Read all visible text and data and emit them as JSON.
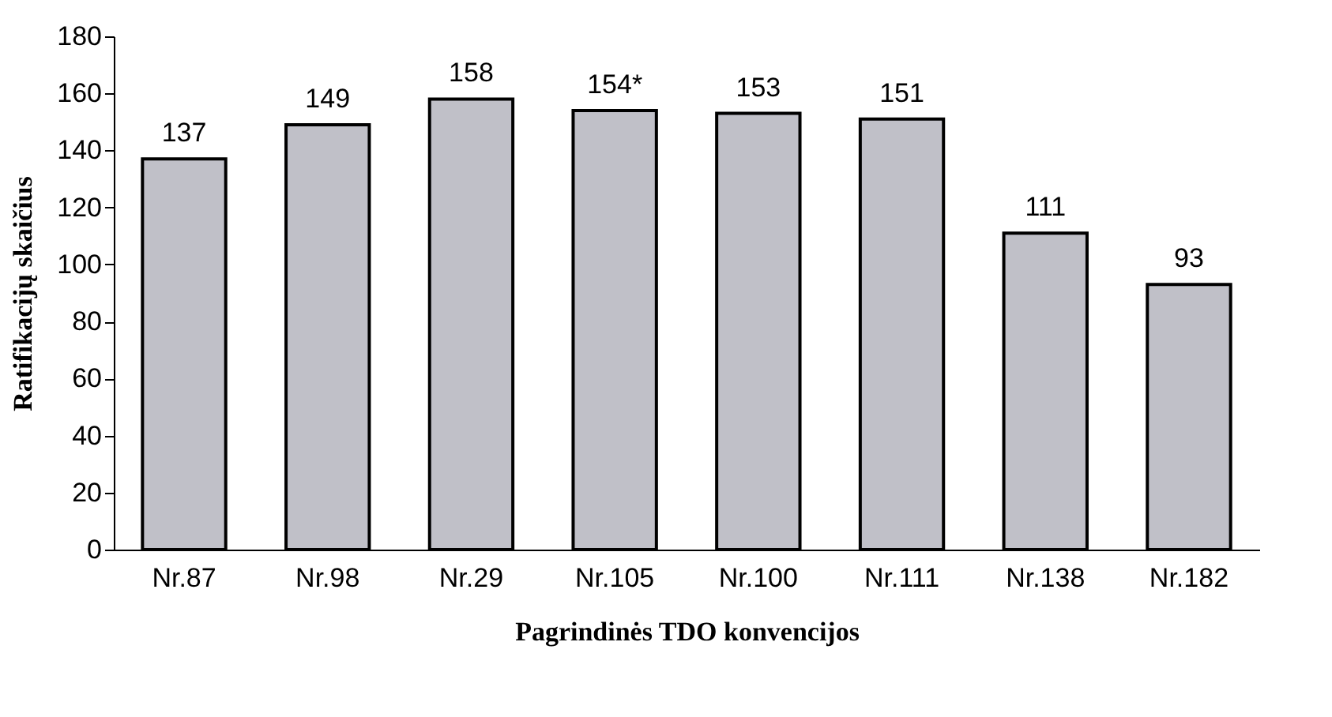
{
  "chart_data": {
    "type": "bar",
    "xlabel": "Pagrindinės TDO konvencijos",
    "ylabel": "Ratifikacijų skaičius",
    "categories": [
      "Nr.87",
      "Nr.98",
      "Nr.29",
      "Nr.105",
      "Nr.100",
      "Nr.111",
      "Nr.138",
      "Nr.182"
    ],
    "values": [
      137,
      149,
      158,
      154,
      153,
      151,
      111,
      93
    ],
    "value_labels": [
      "137",
      "149",
      "158",
      "154*",
      "153",
      "151",
      "111",
      "93"
    ],
    "color": "#c0c0c8",
    "ylim": [
      0,
      180
    ],
    "yticks": [
      0,
      20,
      40,
      60,
      80,
      100,
      120,
      140,
      160,
      180
    ],
    "grid": false
  }
}
